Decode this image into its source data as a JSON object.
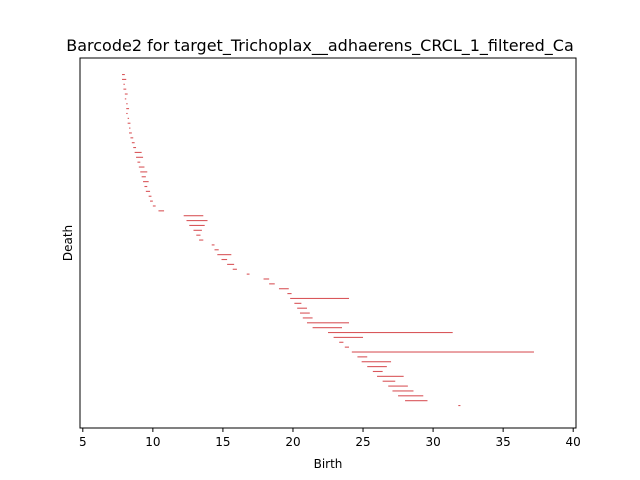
{
  "chart_data": {
    "type": "barcode",
    "title": "Barcode2 for target_Trichoplax__adhaerens_CRCL_1_filtered_Ca",
    "xlabel": "Birth",
    "ylabel": "Death",
    "xlim": [
      4.8,
      40.2
    ],
    "xticks": [
      5,
      10,
      15,
      20,
      25,
      30,
      35,
      40
    ],
    "yticks_shown": false,
    "bar_color": "#d9575b",
    "intervals_note": "approximate birth/death intervals; bars stacked top to bottom",
    "intervals": [
      {
        "birth": 7.8,
        "death": 8.0
      },
      {
        "birth": 7.8,
        "death": 8.1
      },
      {
        "birth": 7.9,
        "death": 8.0
      },
      {
        "birth": 7.9,
        "death": 8.1
      },
      {
        "birth": 8.0,
        "death": 8.2
      },
      {
        "birth": 8.0,
        "death": 8.1
      },
      {
        "birth": 8.1,
        "death": 8.2
      },
      {
        "birth": 8.1,
        "death": 8.3
      },
      {
        "birth": 8.1,
        "death": 8.2
      },
      {
        "birth": 8.2,
        "death": 8.3
      },
      {
        "birth": 8.2,
        "death": 8.4
      },
      {
        "birth": 8.3,
        "death": 8.4
      },
      {
        "birth": 8.3,
        "death": 8.5
      },
      {
        "birth": 8.4,
        "death": 8.6
      },
      {
        "birth": 8.5,
        "death": 8.7
      },
      {
        "birth": 8.6,
        "death": 8.8
      },
      {
        "birth": 8.7,
        "death": 9.2
      },
      {
        "birth": 8.8,
        "death": 9.3
      },
      {
        "birth": 8.9,
        "death": 9.1
      },
      {
        "birth": 9.0,
        "death": 9.4
      },
      {
        "birth": 9.1,
        "death": 9.6
      },
      {
        "birth": 9.2,
        "death": 9.5
      },
      {
        "birth": 9.3,
        "death": 9.7
      },
      {
        "birth": 9.4,
        "death": 9.6
      },
      {
        "birth": 9.5,
        "death": 9.8
      },
      {
        "birth": 9.7,
        "death": 9.9
      },
      {
        "birth": 9.8,
        "death": 10.0
      },
      {
        "birth": 10.0,
        "death": 10.2
      },
      {
        "birth": 10.4,
        "death": 10.8
      },
      {
        "birth": 12.2,
        "death": 13.6
      },
      {
        "birth": 12.4,
        "death": 13.9
      },
      {
        "birth": 12.6,
        "death": 13.7
      },
      {
        "birth": 12.9,
        "death": 13.5
      },
      {
        "birth": 13.1,
        "death": 13.4
      },
      {
        "birth": 13.3,
        "death": 13.6
      },
      {
        "birth": 14.2,
        "death": 14.4
      },
      {
        "birth": 14.4,
        "death": 14.7
      },
      {
        "birth": 14.6,
        "death": 15.6
      },
      {
        "birth": 14.9,
        "death": 15.3
      },
      {
        "birth": 15.3,
        "death": 15.8
      },
      {
        "birth": 15.7,
        "death": 16.0
      },
      {
        "birth": 16.7,
        "death": 16.9
      },
      {
        "birth": 17.9,
        "death": 18.3
      },
      {
        "birth": 18.3,
        "death": 18.7
      },
      {
        "birth": 19.0,
        "death": 19.7
      },
      {
        "birth": 19.6,
        "death": 19.9
      },
      {
        "birth": 19.8,
        "death": 24.0
      },
      {
        "birth": 20.1,
        "death": 20.6
      },
      {
        "birth": 20.3,
        "death": 21.0
      },
      {
        "birth": 20.5,
        "death": 21.2
      },
      {
        "birth": 20.7,
        "death": 21.4
      },
      {
        "birth": 21.0,
        "death": 24.0
      },
      {
        "birth": 21.4,
        "death": 23.5
      },
      {
        "birth": 22.5,
        "death": 31.4
      },
      {
        "birth": 22.9,
        "death": 25.0
      },
      {
        "birth": 23.3,
        "death": 23.6
      },
      {
        "birth": 23.7,
        "death": 24.0
      },
      {
        "birth": 24.2,
        "death": 37.2
      },
      {
        "birth": 24.6,
        "death": 25.3
      },
      {
        "birth": 24.9,
        "death": 27.0
      },
      {
        "birth": 25.3,
        "death": 26.7
      },
      {
        "birth": 25.7,
        "death": 26.4
      },
      {
        "birth": 26.0,
        "death": 27.9
      },
      {
        "birth": 26.4,
        "death": 27.3
      },
      {
        "birth": 26.8,
        "death": 28.2
      },
      {
        "birth": 27.1,
        "death": 28.6
      },
      {
        "birth": 27.5,
        "death": 29.3
      },
      {
        "birth": 28.0,
        "death": 29.6
      },
      {
        "birth": 31.8,
        "death": 31.95
      }
    ]
  }
}
